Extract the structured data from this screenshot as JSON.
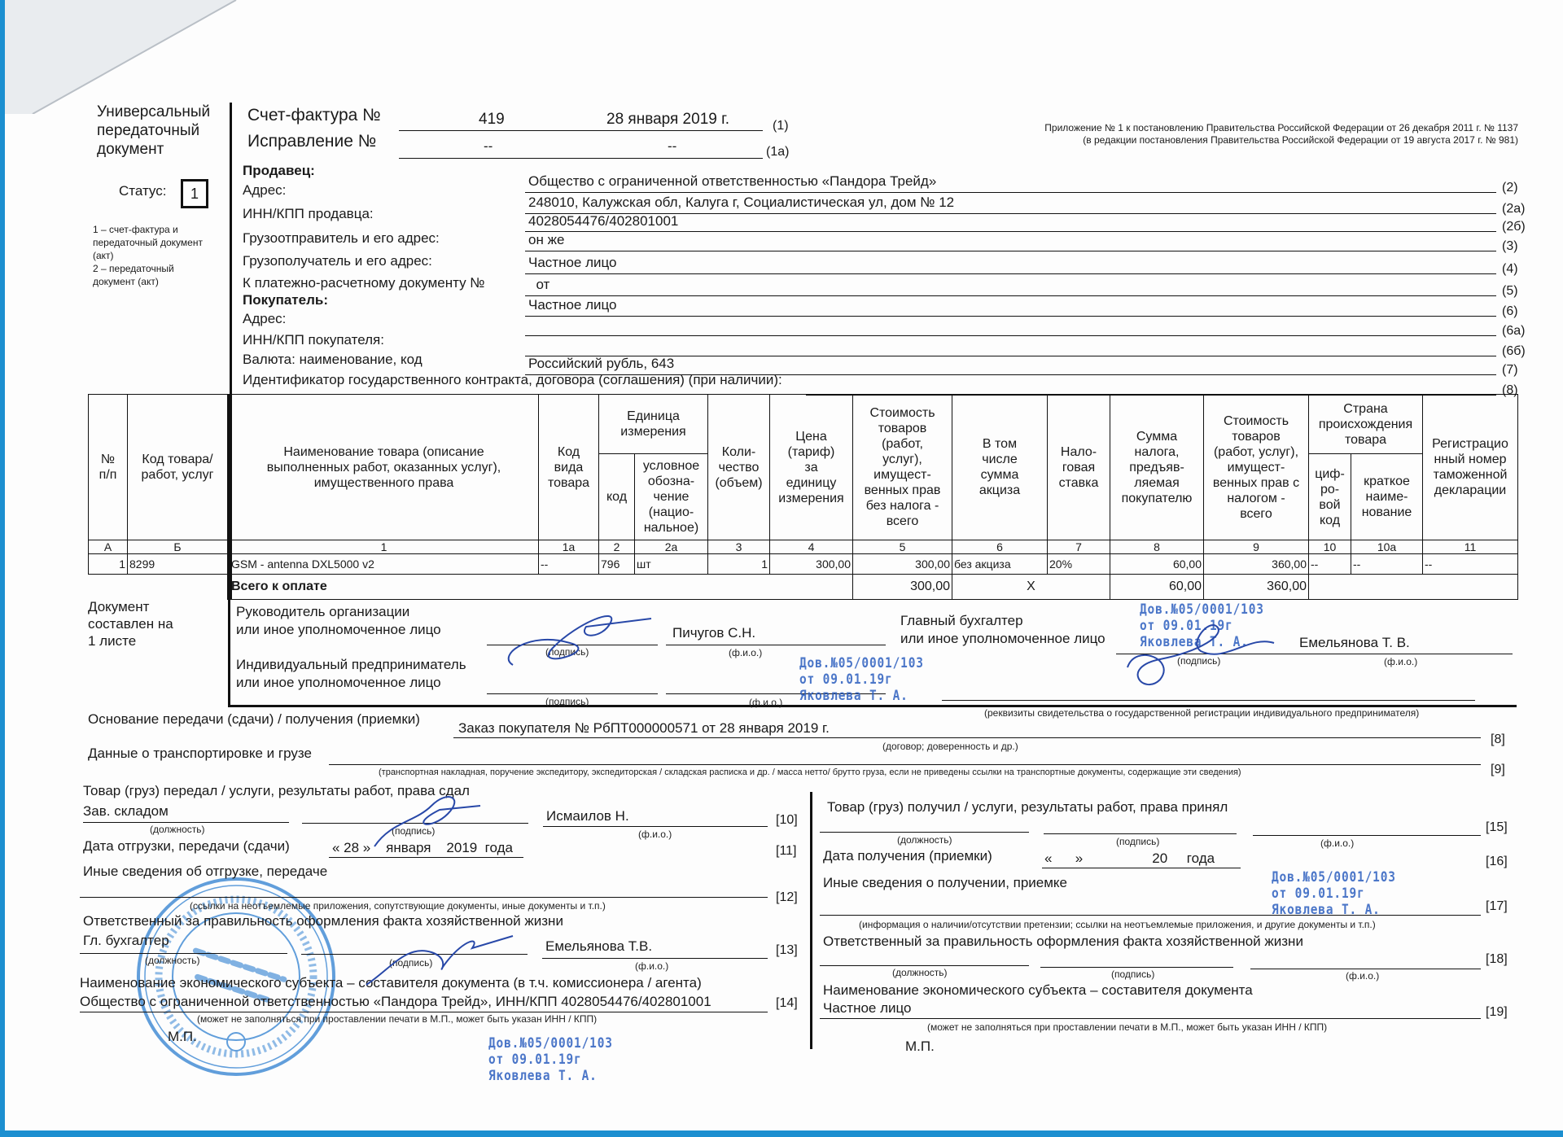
{
  "doc": {
    "title_lines": [
      "Универсальный",
      "передаточный",
      "документ"
    ],
    "status_label": "Статус:",
    "status_value": "1",
    "status_legend": "1 – счет-фактура и\nпередаточный документ\n(акт)\n2 – передаточный\nдокумент (акт)"
  },
  "header": {
    "invoice_label": "Счет-фактура №",
    "invoice_number": "419",
    "invoice_date": "28 января 2019 г.",
    "invoice_code": "(1)",
    "correction_label": "Исправление №",
    "correction_number": "--",
    "correction_date": "--",
    "correction_code": "(1а)",
    "appendix_line1": "Приложение № 1 к постановлению Правительства Российской Федерации от 26 декабря 2011 г. № 1137",
    "appendix_line2": "(в редакции постановления Правительства Российской Федерации от 19 августа 2017 г. № 981)"
  },
  "fields": [
    {
      "label": "Продавец:",
      "bold": true,
      "value": "Общество с ограниченной ответственностью «Пандора Трейд»",
      "code": "(2)"
    },
    {
      "label": "Адрес:",
      "value": "248010, Калужская обл, Калуга г, Социалистическая ул, дом № 12",
      "code": "(2а)"
    },
    {
      "label": "ИНН/КПП продавца:",
      "value": "4028054476/402801001",
      "code": "(2б)"
    },
    {
      "label": "Грузоотправитель и его адрес:",
      "value": "он же",
      "code": "(3)"
    },
    {
      "label": "Грузополучатель и его адрес:",
      "value": "Частное лицо",
      "code": "(4)"
    },
    {
      "label": "К платежно-расчетному документу №",
      "value": "  от",
      "code": "(5)"
    },
    {
      "label": "Покупатель:",
      "bold": true,
      "value": "Частное лицо",
      "code": "(6)"
    },
    {
      "label": "Адрес:",
      "value": "",
      "code": "(6а)"
    },
    {
      "label": "ИНН/КПП покупателя:",
      "value": "",
      "code": "(6б)"
    },
    {
      "label": "Валюта: наименование, код",
      "value": "Российский рубль, 643",
      "code": "(7)"
    },
    {
      "label": "Идентификатор государственного контракта, договора (соглашения) (при наличии):",
      "value": "",
      "code": "(8)"
    }
  ],
  "table": {
    "headers": {
      "num": "№\nп/п",
      "code": "Код товара/\nработ, услуг",
      "name": "Наименование товара (описание\nвыполненных работ, оказанных услуг),\nимущественного права",
      "kind": "Код\nвида\nтовара",
      "unit": "Единица\nизмерения",
      "unit_code": "код",
      "unit_name": "условное\nобозна-\nчение\n(нацио-\nнальное)",
      "qty": "Коли-\nчество\n(объем)",
      "price": "Цена\n(тариф)\nза\nединицу\nизмерения",
      "cost_no_tax": "Стоимость\nтоваров\n(работ,\nуслуг),\nимущест-\nвенных прав\nбез налога -\nвсего",
      "excise": "В том\nчисле\nсумма\nакциза",
      "rate": "Нало-\nговая\nставка",
      "tax": "Сумма\nналога,\nпредъяв-\nляемая\nпокупателю",
      "cost_tax": "Стоимость\nтоваров\n(работ, услуг),\nимущест-\nвенных прав с\nналогом -\nвсего",
      "country": "Страна\nпроисхождения\nтовара",
      "country_code": "циф-\nро-\nвой\nкод",
      "country_name": "краткое\nнаиме-\nнование",
      "customs": "Регистрацио\nнный номер\nтаможенной\nдекларации"
    },
    "column_numbers": [
      "А",
      "Б",
      "1",
      "1а",
      "2",
      "2а",
      "3",
      "4",
      "5",
      "6",
      "7",
      "8",
      "9",
      "10",
      "10а",
      "11"
    ],
    "rows": [
      [
        "1",
        "8299",
        "GSM - antenna DXL5000 v2",
        "--",
        "796",
        "шт",
        "1",
        "300,00",
        "300,00",
        "без акциза",
        "20%",
        "60,00",
        "360,00",
        "--",
        "--",
        "--"
      ]
    ],
    "total_label": "Всего к оплате",
    "total_cost_no_tax": "300,00",
    "total_excise": "X",
    "total_tax": "60,00",
    "total_cost_tax": "360,00"
  },
  "signatures": {
    "sheets": "Документ\nсоставлен на\n1 листе",
    "head_label": "Руководитель организации\nили иное уполномоченное лицо",
    "head_name": "Пичугов С.Н.",
    "ip_label": "Индивидуальный предприниматель\nили иное уполномоченное лицо",
    "accountant_label": "Главный бухгалтер\nили иное уполномоченное лицо",
    "accountant_name": "Емельянова Т. В.",
    "sign_caption": "(подпись)",
    "fio_caption": "(ф.и.о.)",
    "position_caption": "(должность)",
    "ip_caption": "(реквизиты свидетельства о государственной  регистрации индивидуального предпринимателя)"
  },
  "transfer": {
    "basis_label": "Основание передачи (сдачи) / получения (приемки)",
    "basis_value": "Заказ покупателя № РбПТ000000571 от 28 января 2019 г.",
    "basis_caption": "(договор; доверенность и др.)",
    "basis_code": "[8]",
    "transport_label": "Данные о транспортировке и грузе",
    "transport_caption": "(транспортная накладная, поручение экспедитору, экспедиторская / складская расписка и др. / масса нетто/ брутто груза, если не приведены ссылки на транспортные документы, содержащие эти сведения)",
    "transport_code": "[9]",
    "left": {
      "passed_label": "Товар (груз) передал / услуги, результаты работ, права сдал",
      "passed_position": "Зав. складом",
      "passed_name": "Исмаилов Н.",
      "passed_code": "[10]",
      "date_label": "Дата отгрузки, передачи (сдачи)",
      "date_value": "« 28 »    января    2019  года",
      "date_code": "[11]",
      "other_label": "Иные сведения об отгрузке, передаче",
      "other_caption": "(ссылки на неотъемлемые приложения, сопутствующие документы, иные документы и т.п.)",
      "other_code": "[12]",
      "resp_label": "Ответственный за правильность оформления факта хозяйственной жизни",
      "resp_position": "Гл. бухгалтер",
      "resp_name": "Емельянова Т.В.",
      "resp_code": "[13]",
      "entity_label": "Наименование экономического субъекта – составителя документа (в т.ч. комиссионера / агента)",
      "entity_value": "Общество с ограниченной ответственностью «Пандора Трейд», ИНН/КПП 4028054476/402801001",
      "entity_caption": "(может не заполняться при проставлении печати в М.П., может быть указан ИНН / КПП)",
      "entity_code": "[14]",
      "mp": "М.П."
    },
    "right": {
      "received_label": "Товар (груз) получил / услуги, результаты работ, права принял",
      "received_code": "[15]",
      "date_label": "Дата получения (приемки)",
      "date_value": "«      »                  20     года",
      "date_code": "[16]",
      "other_label": "Иные сведения о получении, приемке",
      "other_caption": "(информация о наличии/отсутствии претензии; ссылки на неотъемлемые приложения, и другие  документы и т.п.)",
      "other_code": "[17]",
      "resp_label": "Ответственный за правильность оформления факта хозяйственной жизни",
      "resp_code": "[18]",
      "entity_label": "Наименование экономического субъекта – составителя документа",
      "entity_value": "Частное лицо",
      "entity_caption": "(может не заполняться при проставлении печати в М.П., может быть указан ИНН / КПП)",
      "entity_code": "[19]",
      "mp": "М.П."
    }
  },
  "stamps": {
    "proxy_text": "Дов.№05/0001/103\nот 09.01.19г\nЯковлева Т. А.",
    "seal_text": "Общество с ограниченной ответственностью «Пандора Трейд» ОГРН 113402801... ИНН 4028054476 КАЛУГА"
  },
  "colors": {
    "ink": "#1a1a1a",
    "stamp_blue": "#2d5fbf",
    "scan_edge": "#1c8fd0"
  }
}
